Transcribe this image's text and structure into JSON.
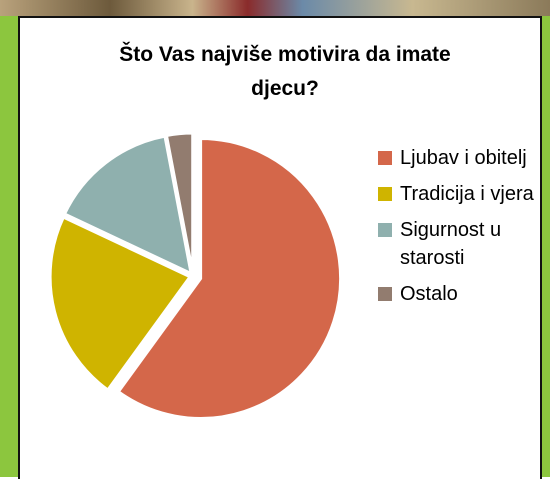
{
  "chart_data": {
    "type": "pie",
    "title": "Što Vas najviše motivira da imate djecu?",
    "categories": [
      "Ljubav i obitelj",
      "Tradicija i vjera",
      "Sigurnost u starosti",
      "Ostalo"
    ],
    "values": [
      60,
      22,
      15,
      3
    ],
    "colors": [
      "#d4674a",
      "#cfb400",
      "#8fb0ae",
      "#927c6f"
    ],
    "legend": "right"
  }
}
